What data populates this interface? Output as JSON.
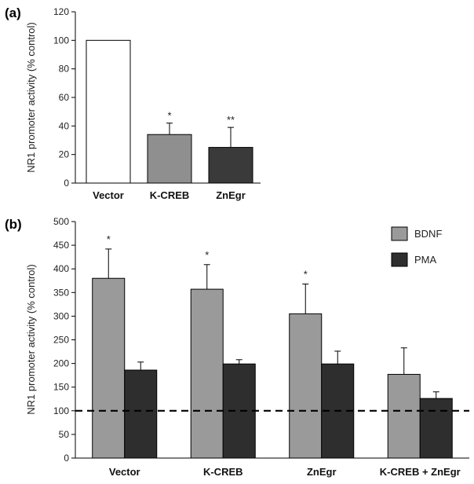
{
  "chart_data": [
    {
      "panel_label": "(a)",
      "type": "bar",
      "categories": [
        "Vector",
        "K-CREB",
        "ZnEgr"
      ],
      "values": [
        100,
        34,
        25
      ],
      "errors": [
        0,
        8,
        14
      ],
      "significance": [
        "",
        "*",
        "**"
      ],
      "bar_colors": [
        "#ffffff",
        "#8f8f8f",
        "#3a3a3a"
      ],
      "title": "",
      "xlabel": "",
      "ylabel": "NR1 promoter activity (% control)",
      "ylim": [
        0,
        120
      ],
      "yticks": [
        0,
        20,
        40,
        60,
        80,
        100,
        120
      ],
      "grid": false
    },
    {
      "panel_label": "(b)",
      "type": "bar",
      "categories": [
        "Vector",
        "K-CREB",
        "ZnEgr",
        "K-CREB + ZnEgr"
      ],
      "series": [
        {
          "name": "BDNF",
          "color": "#9a9a9a",
          "values": [
            380,
            357,
            305,
            177
          ],
          "errors": [
            62,
            52,
            63,
            56
          ],
          "significance": [
            "*",
            "*",
            "*",
            ""
          ]
        },
        {
          "name": "PMA",
          "color": "#2e2e2e",
          "values": [
            186,
            199,
            199,
            126
          ],
          "errors": [
            17,
            9,
            27,
            14
          ],
          "significance": [
            "",
            "",
            "",
            ""
          ]
        }
      ],
      "reference_line": 100,
      "title": "",
      "xlabel": "",
      "ylabel": "NR1 promoter activity (% control)",
      "ylim": [
        0,
        500
      ],
      "yticks": [
        0,
        50,
        100,
        150,
        200,
        250,
        300,
        350,
        400,
        450,
        500
      ],
      "legend_position": "top-right",
      "grid": false
    }
  ]
}
